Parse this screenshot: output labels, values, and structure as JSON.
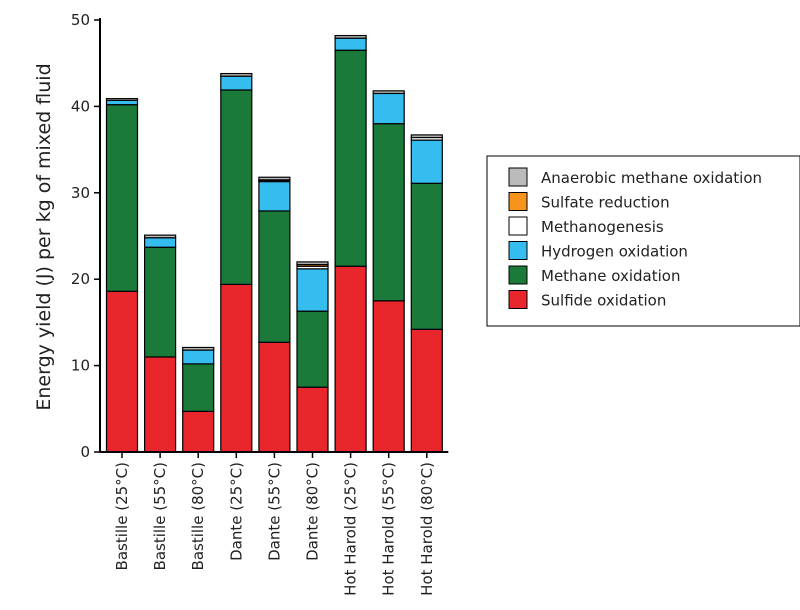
{
  "chart_data": {
    "type": "bar",
    "stacked": true,
    "title": "",
    "xlabel": "",
    "ylabel": "Energy yield (J) per kg of mixed fluid",
    "ylim": [
      0,
      50
    ],
    "yticks": [
      0,
      10,
      20,
      30,
      40,
      50
    ],
    "grid": false,
    "legend_position": "right",
    "categories": [
      "Bastille (25°C)",
      "Bastille (55°C)",
      "Bastille (80°C)",
      "Dante (25°C)",
      "Dante (55°C)",
      "Dante (80°C)",
      "Hot Harold (25°C)",
      "Hot Harold (55°C)",
      "Hot Harold (80°C)"
    ],
    "series": [
      {
        "name": "Sulfide oxidation",
        "color": "#e8262b",
        "values": [
          18.6,
          11.0,
          4.7,
          19.4,
          12.7,
          7.5,
          21.5,
          17.5,
          14.2
        ]
      },
      {
        "name": "Methane oxidation",
        "color": "#1b7a3a",
        "values": [
          21.6,
          12.7,
          5.5,
          22.5,
          15.2,
          8.8,
          25.0,
          20.5,
          16.9
        ]
      },
      {
        "name": "Hydrogen oxidation",
        "color": "#35bdf0",
        "values": [
          0.5,
          1.1,
          1.6,
          1.6,
          3.4,
          4.9,
          1.4,
          3.5,
          5.0
        ]
      },
      {
        "name": "Methanogenesis",
        "color": "#ffffff",
        "values": [
          0.0,
          0.0,
          0.0,
          0.0,
          0.1,
          0.3,
          0.0,
          0.0,
          0.3
        ]
      },
      {
        "name": "Sulfate reduction",
        "color": "#f7941d",
        "values": [
          0.0,
          0.0,
          0.0,
          0.0,
          0.1,
          0.2,
          0.0,
          0.0,
          0.0
        ]
      },
      {
        "name": "Anaerobic methane oxidation",
        "color": "#bbbbbb",
        "values": [
          0.2,
          0.3,
          0.3,
          0.3,
          0.3,
          0.3,
          0.3,
          0.3,
          0.3
        ]
      }
    ],
    "legend_order": [
      "Anaerobic methane oxidation",
      "Sulfate reduction",
      "Methanogenesis",
      "Hydrogen oxidation",
      "Methane oxidation",
      "Sulfide oxidation"
    ]
  }
}
